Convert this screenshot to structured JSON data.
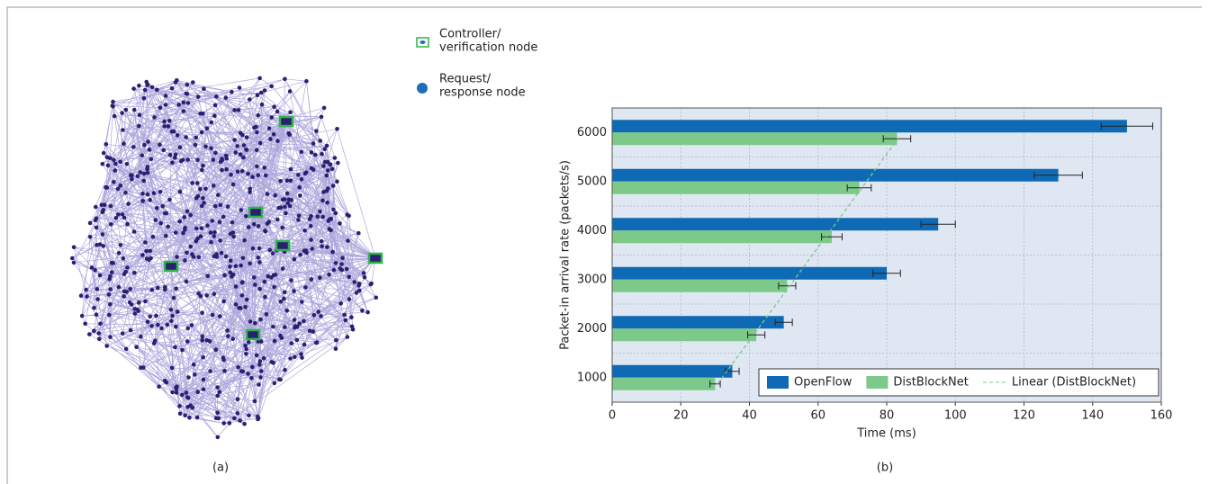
{
  "chart_data": [
    {
      "type": "network",
      "caption": "(a)",
      "legend": [
        {
          "lines": [
            "Controller/",
            "verification node"
          ],
          "color": "#2fb34a"
        },
        {
          "lines": [
            "Request/",
            "response node"
          ],
          "color": "#1f6eb8"
        }
      ]
    },
    {
      "type": "hbar",
      "caption": "(b)",
      "xlabel": "Time (ms)",
      "ylabel": "Packet-in arrival rate (packets/s)",
      "categories": [
        "1000",
        "2000",
        "3000",
        "4000",
        "5000",
        "6000"
      ],
      "series": [
        {
          "name": "OpenFlow",
          "color": "#0e6ab5",
          "values": [
            35,
            50,
            80,
            95,
            130,
            150
          ],
          "errors": [
            2,
            2.5,
            4,
            5,
            7,
            7.5
          ]
        },
        {
          "name": "DistBlockNet",
          "color": "#7dc98a",
          "values": [
            30,
            42,
            51,
            64,
            72,
            83
          ],
          "errors": [
            1.5,
            2.5,
            2.5,
            3,
            3.5,
            4
          ],
          "trendline_name": "Linear (DistBlockNet)"
        }
      ],
      "xlim": [
        0,
        160
      ],
      "xticks": [
        0,
        20,
        40,
        60,
        80,
        100,
        120,
        140,
        160
      ],
      "grid": true,
      "legend_position": "lower right"
    }
  ]
}
